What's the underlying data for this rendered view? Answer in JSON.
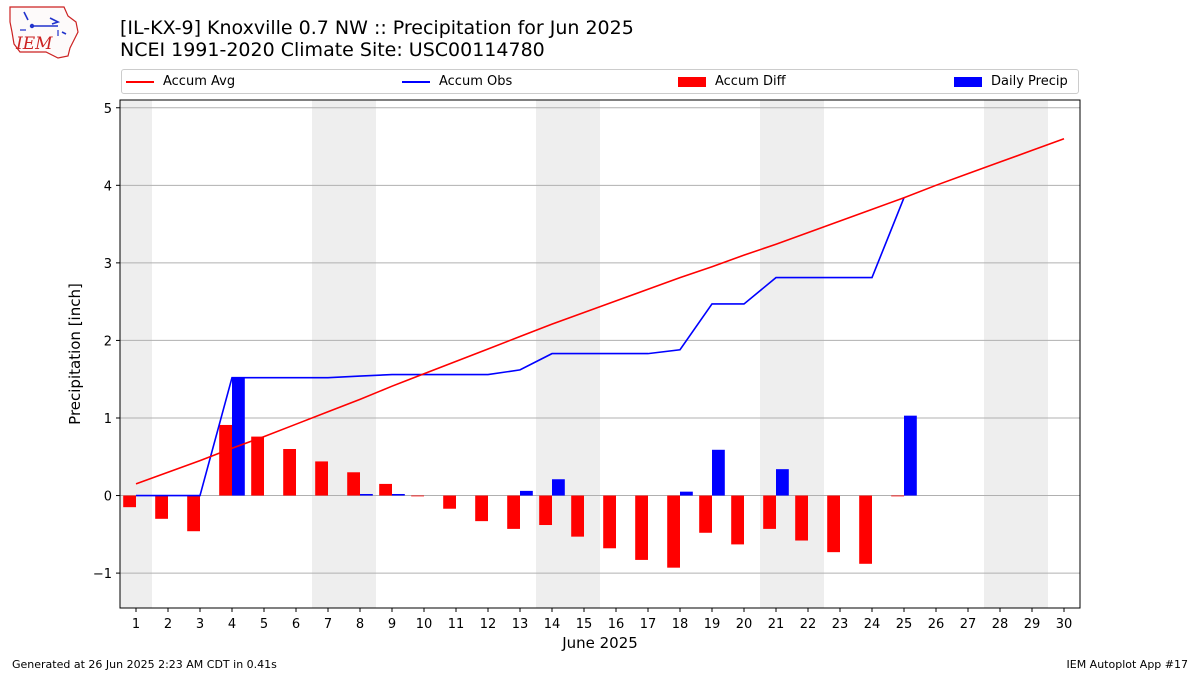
{
  "header": {
    "title": "[IL-KX-9] Knoxville 0.7 NW :: Precipitation for Jun 2025",
    "subtitle": "NCEI 1991-2020 Climate Site: USC00114780"
  },
  "logo": {
    "text": "IEM",
    "color": "#cc2222"
  },
  "footer": {
    "left": "Generated at 26 Jun 2025 2:23 AM CDT in 0.41s",
    "right": "IEM Autoplot App #17"
  },
  "chart_data": {
    "type": "bar",
    "xlabel": "June 2025",
    "ylabel": "Precipitation [inch]",
    "xlim": [
      0.5,
      30.5
    ],
    "ylim": [
      -1.45,
      5.1
    ],
    "yticks": [
      -1,
      0,
      1,
      2,
      3,
      4,
      5
    ],
    "ytick_labels": [
      "−1",
      "0",
      "1",
      "2",
      "3",
      "4",
      "5"
    ],
    "days": [
      1,
      2,
      3,
      4,
      5,
      6,
      7,
      8,
      9,
      10,
      11,
      12,
      13,
      14,
      15,
      16,
      17,
      18,
      19,
      20,
      21,
      22,
      23,
      24,
      25,
      26,
      27,
      28,
      29,
      30
    ],
    "weekend_bands": [
      [
        0.5,
        1.5
      ],
      [
        6.5,
        8.5
      ],
      [
        13.5,
        15.5
      ],
      [
        20.5,
        22.5
      ],
      [
        27.5,
        29.5
      ]
    ],
    "grid": "y",
    "legend_placement": "top",
    "series": [
      {
        "name": "Accum Avg",
        "kind": "line",
        "color": "#ff0000",
        "x": [
          1,
          2,
          3,
          4,
          5,
          6,
          7,
          8,
          9,
          10,
          11,
          12,
          13,
          14,
          15,
          16,
          17,
          18,
          19,
          20,
          21,
          22,
          23,
          24,
          25,
          26,
          27,
          28,
          29,
          30
        ],
        "values": [
          0.15,
          0.3,
          0.45,
          0.61,
          0.76,
          0.92,
          1.08,
          1.24,
          1.41,
          1.57,
          1.73,
          1.89,
          2.05,
          2.21,
          2.36,
          2.51,
          2.66,
          2.81,
          2.95,
          3.1,
          3.24,
          3.39,
          3.54,
          3.69,
          3.84,
          4.0,
          4.15,
          4.3,
          4.45,
          4.6
        ]
      },
      {
        "name": "Accum Obs",
        "kind": "line",
        "color": "#0000ff",
        "x": [
          1,
          2,
          3,
          4,
          5,
          6,
          7,
          8,
          9,
          10,
          11,
          12,
          13,
          14,
          15,
          16,
          17,
          18,
          19,
          20,
          21,
          22,
          23,
          24,
          25
        ],
        "values": [
          0.0,
          0.0,
          0.0,
          1.52,
          1.52,
          1.52,
          1.52,
          1.54,
          1.56,
          1.56,
          1.56,
          1.56,
          1.62,
          1.83,
          1.83,
          1.83,
          1.83,
          1.88,
          2.47,
          2.47,
          2.81,
          2.81,
          2.81,
          2.81,
          3.84
        ]
      },
      {
        "name": "Accum Diff",
        "kind": "bar",
        "color": "#ff0000",
        "x": [
          1,
          2,
          3,
          4,
          5,
          6,
          7,
          8,
          9,
          10,
          11,
          12,
          13,
          14,
          15,
          16,
          17,
          18,
          19,
          20,
          21,
          22,
          23,
          24,
          25
        ],
        "values": [
          -0.15,
          -0.3,
          -0.46,
          0.91,
          0.76,
          0.6,
          0.44,
          0.3,
          0.15,
          -0.01,
          -0.17,
          -0.33,
          -0.43,
          -0.38,
          -0.53,
          -0.68,
          -0.83,
          -0.93,
          -0.48,
          -0.63,
          -0.43,
          -0.58,
          -0.73,
          -0.88,
          -0.01
        ]
      },
      {
        "name": "Daily Precip",
        "kind": "bar",
        "color": "#0000ff",
        "x": [
          1,
          2,
          3,
          4,
          5,
          6,
          7,
          8,
          9,
          10,
          11,
          12,
          13,
          14,
          15,
          16,
          17,
          18,
          19,
          20,
          21,
          22,
          23,
          24,
          25
        ],
        "values": [
          0,
          0,
          0,
          1.52,
          0,
          0,
          0,
          0.02,
          0.02,
          0,
          0,
          0,
          0.06,
          0.21,
          0,
          0,
          0,
          0.05,
          0.59,
          0,
          0.34,
          0,
          0,
          0,
          1.03
        ]
      }
    ]
  }
}
